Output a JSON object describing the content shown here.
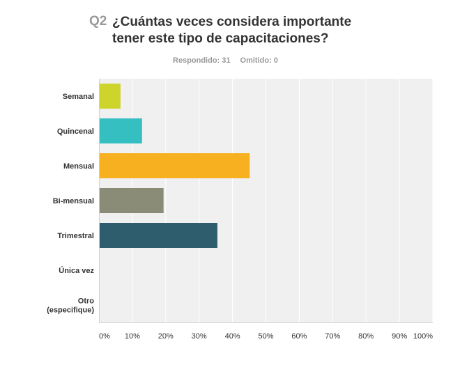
{
  "question": {
    "number": "Q2",
    "title_line1": "¿Cuántas veces considera importante",
    "title_line2": "tener este tipo de capacitaciones?"
  },
  "stats": {
    "answered": "Respondido: 31",
    "skipped": "Omitido: 0"
  },
  "chart_data": {
    "type": "bar",
    "orientation": "horizontal",
    "categories": [
      "Semanal",
      "Quincenal",
      "Mensual",
      "Bi-mensual",
      "Trimestral",
      "Única vez",
      "Otro (especifique)"
    ],
    "category_lines": [
      [
        "Semanal"
      ],
      [
        "Quincenal"
      ],
      [
        "Mensual"
      ],
      [
        "Bi-mensual"
      ],
      [
        "Trimestral"
      ],
      [
        "Única vez"
      ],
      [
        "Otro",
        "(especifique)"
      ]
    ],
    "values": [
      6.45,
      12.9,
      45.16,
      19.35,
      35.48,
      0,
      0
    ],
    "colors": [
      "#cdd42b",
      "#35bfc1",
      "#f6b020",
      "#8b8c78",
      "#2e5e6d",
      "#999999",
      "#999999"
    ],
    "xlim": [
      0,
      100
    ],
    "ticks": [
      0,
      10,
      20,
      30,
      40,
      50,
      60,
      70,
      80,
      90,
      100
    ],
    "tick_labels": [
      "0%",
      "10%",
      "20%",
      "30%",
      "40%",
      "50%",
      "60%",
      "70%",
      "80%",
      "90%",
      "100%"
    ],
    "grid": true,
    "background": "#f0f0f0"
  }
}
